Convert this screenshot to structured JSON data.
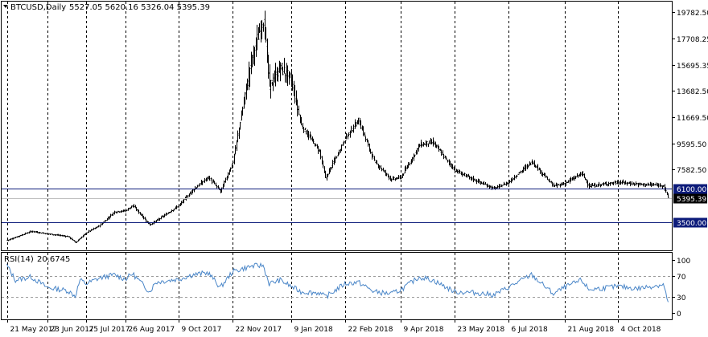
{
  "main_header": {
    "symbol_timeframe": "BTCUSD,Daily",
    "ohlc": "5527.05 5620.16 5326.04 5395.39"
  },
  "rsi_header": {
    "label": "RSI(14)",
    "value": "20.6745"
  },
  "price_scale": [
    "19782.50",
    "17708.25",
    "15695.35",
    "13682.50",
    "11669.50",
    "9595.50",
    "7582.50",
    "5395.39",
    "3500.00"
  ],
  "rsi_scale": [
    "100",
    "70",
    "30",
    "0"
  ],
  "date_labels": [
    "21 May 2017",
    "23 Jun 2017",
    "25 Jul 2017",
    "26 Aug 2017",
    "9 Oct 2017",
    "22 Nov 2017",
    "9 Jan 2018",
    "22 Feb 2018",
    "9 Apr 2018",
    "23 May 2018",
    "6 Jul 2018",
    "21 Aug 2018",
    "4 Oct 2018"
  ],
  "horizontal_levels": [
    {
      "price": 6100,
      "label": "6100.00",
      "color": "#0c1b7a"
    },
    {
      "price": 3500,
      "label": "3500.00",
      "color": "#0c1b7a"
    }
  ],
  "current_price": {
    "price": 5395.39,
    "label": "5395.39"
  },
  "colors": {
    "background": "#ffffff",
    "bars": "#000000",
    "rsi_line": "#4a86c8",
    "level_line": "#0c1b7a",
    "grid": "#000000"
  },
  "chart_data": [
    {
      "type": "ohlc",
      "title": "BTCUSD,Daily",
      "x": [
        "21 May 2017",
        "23 Jun 2017",
        "25 Jul 2017",
        "26 Aug 2017",
        "9 Oct 2017",
        "22 Nov 2017",
        "9 Jan 2018",
        "22 Feb 2018",
        "9 Apr 2018",
        "23 May 2018",
        "6 Jul 2018",
        "21 Aug 2018",
        "4 Oct 2018"
      ],
      "close_path": [
        [
          "21 May 2017",
          2100
        ],
        [
          "10 Jun 2017",
          2800
        ],
        [
          "23 Jun 2017",
          2600
        ],
        [
          "10 Jul 2017",
          2400
        ],
        [
          "16 Jul 2017",
          1950
        ],
        [
          "25 Jul 2017",
          2700
        ],
        [
          "5 Aug 2017",
          3250
        ],
        [
          "17 Aug 2017",
          4300
        ],
        [
          "26 Aug 2017",
          4400
        ],
        [
          "1 Sep 2017",
          4800
        ],
        [
          "15 Sep 2017",
          3300
        ],
        [
          "9 Oct 2017",
          4800
        ],
        [
          "20 Oct 2017",
          6000
        ],
        [
          "2 Nov 2017",
          7000
        ],
        [
          "12 Nov 2017",
          5900
        ],
        [
          "22 Nov 2017",
          8200
        ],
        [
          "7 Dec 2017",
          16000
        ],
        [
          "17 Dec 2017",
          19300
        ],
        [
          "22 Dec 2017",
          14000
        ],
        [
          "31 Dec 2017",
          15500
        ],
        [
          "9 Jan 2018",
          14500
        ],
        [
          "17 Jan 2018",
          11000
        ],
        [
          "1 Feb 2018",
          9000
        ],
        [
          "6 Feb 2018",
          6900
        ],
        [
          "22 Feb 2018",
          10000
        ],
        [
          "5 Mar 2018",
          11400
        ],
        [
          "18 Mar 2018",
          8200
        ],
        [
          "1 Apr 2018",
          6800
        ],
        [
          "9 Apr 2018",
          7000
        ],
        [
          "24 Apr 2018",
          9500
        ],
        [
          "5 May 2018",
          9700
        ],
        [
          "23 May 2018",
          7500
        ],
        [
          "10 Jun 2018",
          6700
        ],
        [
          "24 Jun 2018",
          6100
        ],
        [
          "6 Jul 2018",
          6600
        ],
        [
          "25 Jul 2018",
          8200
        ],
        [
          "12 Aug 2018",
          6300
        ],
        [
          "21 Aug 2018",
          6500
        ],
        [
          "4 Sep 2018",
          7300
        ],
        [
          "10 Sep 2018",
          6300
        ],
        [
          "4 Oct 2018",
          6600
        ],
        [
          "20 Oct 2018",
          6450
        ],
        [
          "10 Nov 2018",
          6350
        ],
        [
          "14 Nov 2018",
          5395.39
        ]
      ],
      "last": {
        "open": 5527.05,
        "high": 5620.16,
        "low": 5326.04,
        "close": 5395.39
      },
      "ylim": [
        1500,
        20300
      ],
      "yticks": [
        19782.5,
        17708.25,
        15695.35,
        13682.5,
        11669.5,
        9595.5,
        7582.5,
        5395.39,
        3500.0
      ]
    },
    {
      "type": "line",
      "title": "RSI(14) 20.6745",
      "x_path": [
        [
          "21 May 2017",
          90
        ],
        [
          "28 May 2017",
          62
        ],
        [
          "10 Jun 2017",
          68
        ],
        [
          "23 Jun 2017",
          48
        ],
        [
          "10 Jul 2017",
          42
        ],
        [
          "16 Jul 2017",
          32
        ],
        [
          "20 Jul 2017",
          62
        ],
        [
          "25 Jul 2017",
          55
        ],
        [
          "5 Aug 2017",
          66
        ],
        [
          "17 Aug 2017",
          72
        ],
        [
          "26 Aug 2017",
          64
        ],
        [
          "1 Sep 2017",
          74
        ],
        [
          "15 Sep 2017",
          40
        ],
        [
          "20 Sep 2017",
          58
        ],
        [
          "9 Oct 2017",
          64
        ],
        [
          "20 Oct 2017",
          72
        ],
        [
          "2 Nov 2017",
          76
        ],
        [
          "12 Nov 2017",
          48
        ],
        [
          "22 Nov 2017",
          78
        ],
        [
          "7 Dec 2017",
          88
        ],
        [
          "17 Dec 2017",
          90
        ],
        [
          "22 Dec 2017",
          55
        ],
        [
          "31 Dec 2017",
          62
        ],
        [
          "9 Jan 2018",
          50
        ],
        [
          "17 Jan 2018",
          40
        ],
        [
          "1 Feb 2018",
          38
        ],
        [
          "6 Feb 2018",
          30
        ],
        [
          "22 Feb 2018",
          55
        ],
        [
          "5 Mar 2018",
          58
        ],
        [
          "18 Mar 2018",
          40
        ],
        [
          "1 Apr 2018",
          36
        ],
        [
          "9 Apr 2018",
          44
        ],
        [
          "24 Apr 2018",
          68
        ],
        [
          "5 May 2018",
          62
        ],
        [
          "23 May 2018",
          40
        ],
        [
          "10 Jun 2018",
          38
        ],
        [
          "24 Jun 2018",
          34
        ],
        [
          "6 Jul 2018",
          48
        ],
        [
          "25 Jul 2018",
          72
        ],
        [
          "12 Aug 2018",
          36
        ],
        [
          "21 Aug 2018",
          48
        ],
        [
          "4 Sep 2018",
          62
        ],
        [
          "10 Sep 2018",
          44
        ],
        [
          "4 Oct 2018",
          50
        ],
        [
          "20 Oct 2018",
          46
        ],
        [
          "10 Nov 2018",
          54
        ],
        [
          "14 Nov 2018",
          20.6745
        ]
      ],
      "levels": [
        70,
        30
      ],
      "ylim": [
        0,
        100
      ]
    }
  ]
}
